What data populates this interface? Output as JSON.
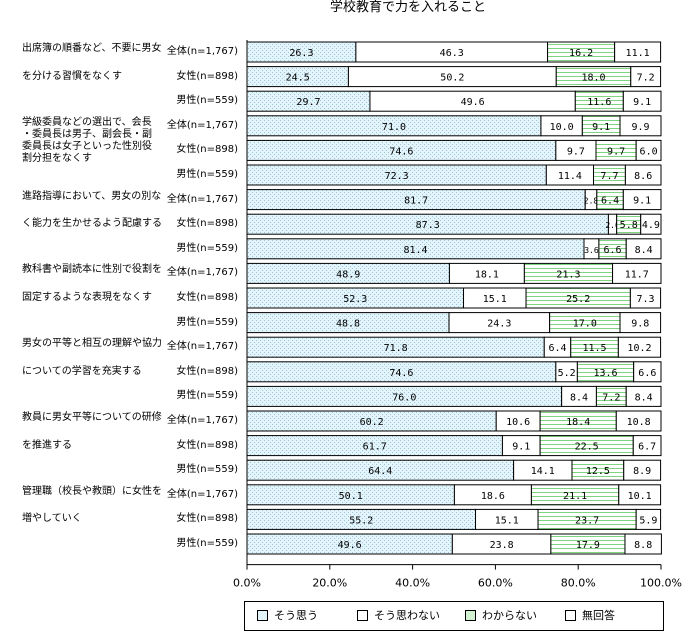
{
  "chart_data": {
    "type": "stacked-horizontal-bar",
    "title": "学校教育で力を入れること",
    "xlim": [
      0,
      100
    ],
    "x_ticks": [
      "0.0%",
      "20.0%",
      "40.0%",
      "60.0%",
      "80.0%",
      "100.0%"
    ],
    "legend": [
      "そう思う",
      "そう思わない",
      "わからない",
      "無回答"
    ],
    "series_colors": [
      "#e4f4fb",
      "#ffffff",
      "#d2f2d2",
      "#ffffff"
    ],
    "groups": [
      {
        "label_lines": [
          "出席簿の順番など、不要に男女",
          "を分ける習慣をなくす"
        ],
        "rows": [
          {
            "label": "全体(n=1,767)",
            "values": [
              26.3,
              46.3,
              16.2,
              11.1
            ]
          },
          {
            "label": "女性(n=898)",
            "values": [
              24.5,
              50.2,
              18.0,
              7.2
            ]
          },
          {
            "label": "男性(n=559)",
            "values": [
              29.7,
              49.6,
              11.6,
              9.1
            ]
          }
        ]
      },
      {
        "label_lines": [
          "学級委員などの選出で、会長",
          "・委員長は男子、副会長・副",
          "委員長は女子といった性別役",
          "割分担をなくす"
        ],
        "rows": [
          {
            "label": "全体(n=1,767)",
            "values": [
              71.0,
              10.0,
              9.1,
              9.9
            ]
          },
          {
            "label": "女性(n=898)",
            "values": [
              74.6,
              9.7,
              9.7,
              6.0
            ]
          },
          {
            "label": "男性(n=559)",
            "values": [
              72.3,
              11.4,
              7.7,
              8.6
            ]
          }
        ]
      },
      {
        "label_lines": [
          "進路指導において、男女の別な",
          "く能力を生かせるよう配慮する"
        ],
        "rows": [
          {
            "label": "全体(n=1,767)",
            "values": [
              81.7,
              2.8,
              6.4,
              9.1
            ]
          },
          {
            "label": "女性(n=898)",
            "values": [
              87.3,
              2.0,
              5.8,
              4.9
            ]
          },
          {
            "label": "男性(n=559)",
            "values": [
              81.4,
              3.6,
              6.6,
              8.4
            ]
          }
        ]
      },
      {
        "label_lines": [
          "教科書や副読本に性別で役割を",
          "固定するような表現をなくす"
        ],
        "rows": [
          {
            "label": "全体(n=1,767)",
            "values": [
              48.9,
              18.1,
              21.3,
              11.7
            ]
          },
          {
            "label": "女性(n=898)",
            "values": [
              52.3,
              15.1,
              25.2,
              7.3
            ]
          },
          {
            "label": "男性(n=559)",
            "values": [
              48.8,
              24.3,
              17.0,
              9.8
            ]
          }
        ]
      },
      {
        "label_lines": [
          "男女の平等と相互の理解や協力",
          "についての学習を充実する"
        ],
        "rows": [
          {
            "label": "全体(n=1,767)",
            "values": [
              71.8,
              6.4,
              11.5,
              10.2
            ]
          },
          {
            "label": "女性(n=898)",
            "values": [
              74.6,
              5.2,
              13.6,
              6.6
            ]
          },
          {
            "label": "男性(n=559)",
            "values": [
              76.0,
              8.4,
              7.2,
              8.4
            ]
          }
        ]
      },
      {
        "label_lines": [
          "教員に男女平等についての研修",
          "を推進する"
        ],
        "rows": [
          {
            "label": "全体(n=1,767)",
            "values": [
              60.2,
              10.6,
              18.4,
              10.8
            ]
          },
          {
            "label": "女性(n=898)",
            "values": [
              61.7,
              9.1,
              22.5,
              6.7
            ]
          },
          {
            "label": "男性(n=559)",
            "values": [
              64.4,
              14.1,
              12.5,
              8.9
            ]
          }
        ]
      },
      {
        "label_lines": [
          "管理職（校長や教頭）に女性を",
          "増やしていく"
        ],
        "rows": [
          {
            "label": "全体(n=1,767)",
            "values": [
              50.1,
              18.6,
              21.1,
              10.1
            ]
          },
          {
            "label": "女性(n=898)",
            "values": [
              55.2,
              15.1,
              23.7,
              5.9
            ]
          },
          {
            "label": "男性(n=559)",
            "values": [
              49.6,
              23.8,
              17.9,
              8.8
            ]
          }
        ]
      }
    ]
  }
}
